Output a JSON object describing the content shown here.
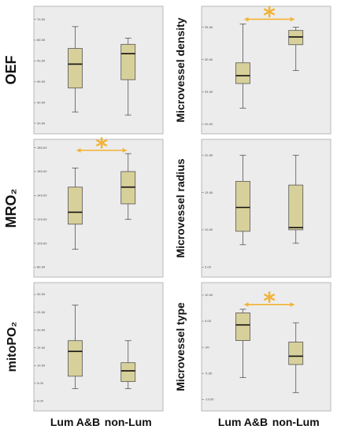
{
  "colors": {
    "box_fill": "#d8d09a",
    "box_stroke": "#555555",
    "median": "#111111",
    "panel_bg": "#ececec",
    "panel_border": "#b9b9b9",
    "annotation": "#f2b233"
  },
  "x_labels": [
    "Lum A&B",
    "non-Lum"
  ],
  "chart_data": [
    {
      "type": "box",
      "ylabel": "OEF",
      "categories": [
        "Lum A&B",
        "non-Lum"
      ],
      "ticks": [
        "20.00",
        "30.00",
        "40.00",
        "50.00",
        "60.00",
        "70.00"
      ],
      "ylim": [
        18,
        74
      ],
      "boxes": [
        {
          "whisker_low": 25.5,
          "q1": 37,
          "median": 48.5,
          "q3": 56,
          "whisker_high": 66.5
        },
        {
          "whisker_low": 24,
          "q1": 41,
          "median": 53.5,
          "q3": 58,
          "whisker_high": 61
        }
      ],
      "significance": false,
      "star": ""
    },
    {
      "type": "box",
      "ylabel": "Microvessel density",
      "categories": [
        "Lum A&B",
        "non-Lum"
      ],
      "ticks": [
        "20.00",
        "25.00",
        "30.00",
        "35.00"
      ],
      "ylim": [
        19.5,
        37.5
      ],
      "boxes": [
        {
          "whisker_low": 22.5,
          "q1": 26.3,
          "median": 27.5,
          "q3": 29.5,
          "whisker_high": 35.5
        },
        {
          "whisker_low": 28.3,
          "q1": 32.3,
          "median": 33.5,
          "q3": 34.5,
          "whisker_high": 35
        }
      ],
      "significance": true,
      "star": "*"
    },
    {
      "type": "box",
      "ylabel": "MRO₂",
      "categories": [
        "Lum A&B",
        "non-Lum"
      ],
      "ticks": [
        "80.00",
        "100.00",
        "120.00",
        "140.00",
        "160.00",
        "180.00"
      ],
      "ylim": [
        77,
        183
      ],
      "boxes": [
        {
          "whisker_low": 95,
          "q1": 116,
          "median": 126,
          "q3": 147,
          "whisker_high": 163
        },
        {
          "whisker_low": 120,
          "q1": 133,
          "median": 147,
          "q3": 160,
          "whisker_high": 175
        }
      ],
      "significance": true,
      "star": "*"
    },
    {
      "type": "box",
      "ylabel": "Microvessel radius",
      "categories": [
        "Lum A&B",
        "non-Lum"
      ],
      "ticks": [
        "5.00",
        "10.00",
        "15.00",
        "20.00"
      ],
      "ylim": [
        4.5,
        21.5
      ],
      "boxes": [
        {
          "whisker_low": 8,
          "q1": 9.8,
          "median": 13,
          "q3": 16.5,
          "whisker_high": 20
        },
        {
          "whisker_low": 8.2,
          "q1": 10,
          "median": 10.3,
          "q3": 16,
          "whisker_high": 20
        }
      ],
      "significance": false,
      "star": ""
    },
    {
      "type": "box",
      "ylabel": "mitoPO₂",
      "categories": [
        "Lum A&B",
        "non-Lum"
      ],
      "ticks": [
        "0.00",
        "5.00",
        "10.00",
        "15.00",
        "20.00",
        "25.00",
        "30.00"
      ],
      "ylim": [
        -1,
        32
      ],
      "boxes": [
        {
          "whisker_low": 3.5,
          "q1": 7,
          "median": 14,
          "q3": 17,
          "whisker_high": 27
        },
        {
          "whisker_low": 3.5,
          "q1": 5.5,
          "median": 8.5,
          "q3": 10.8,
          "whisker_high": 17
        }
      ],
      "significance": false,
      "star": ""
    },
    {
      "type": "box",
      "ylabel": "Microvessel type",
      "categories": [
        "Lum A&B",
        "non-Lum"
      ],
      "ticks": [
        "-10.00",
        "-5.00",
        ".00",
        "5.00",
        "10.00"
      ],
      "ylim": [
        -11,
        11.5
      ],
      "boxes": [
        {
          "whisker_low": -5.8,
          "q1": 1.3,
          "median": 4.3,
          "q3": 6.6,
          "whisker_high": 7.3
        },
        {
          "whisker_low": -8.7,
          "q1": -3.3,
          "median": -1.7,
          "q3": 1,
          "whisker_high": 4.7
        }
      ],
      "significance": true,
      "star": "*"
    }
  ]
}
